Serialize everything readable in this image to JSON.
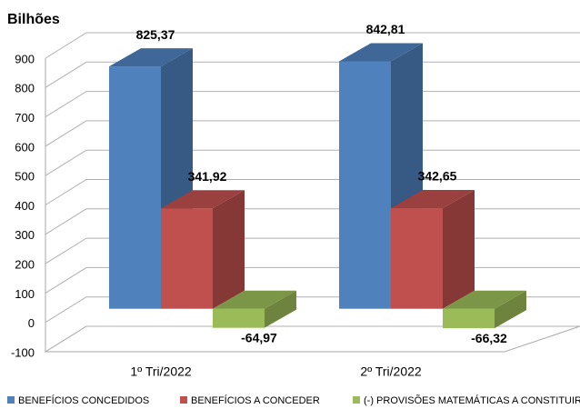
{
  "chart_data": {
    "type": "bar3d",
    "y_label": "Bilhões",
    "categories": [
      "1º Tri/2022",
      "2º Tri/2022"
    ],
    "series": [
      {
        "name": "BENEFÍCIOS CONCEDIDOS",
        "color": "#4f81bd",
        "values": [
          825.37,
          842.81
        ],
        "value_labels": [
          "825,37",
          "842,81"
        ]
      },
      {
        "name": "BENEFÍCIOS A CONCEDER",
        "color": "#c0504d",
        "values": [
          341.92,
          342.65
        ],
        "value_labels": [
          "341,92",
          "342,65"
        ]
      },
      {
        "name": "(-) PROVISÕES MATEMÁTICAS A CONSTITUIR",
        "color": "#9bbb59",
        "values": [
          -64.97,
          -66.32
        ],
        "value_labels": [
          "-64,97",
          "-66,32"
        ]
      }
    ],
    "ylim": [
      -100,
      900
    ],
    "yticks": [
      -100,
      0,
      100,
      200,
      300,
      400,
      500,
      600,
      700,
      800,
      900
    ],
    "grid": true,
    "legend": "bottom"
  }
}
